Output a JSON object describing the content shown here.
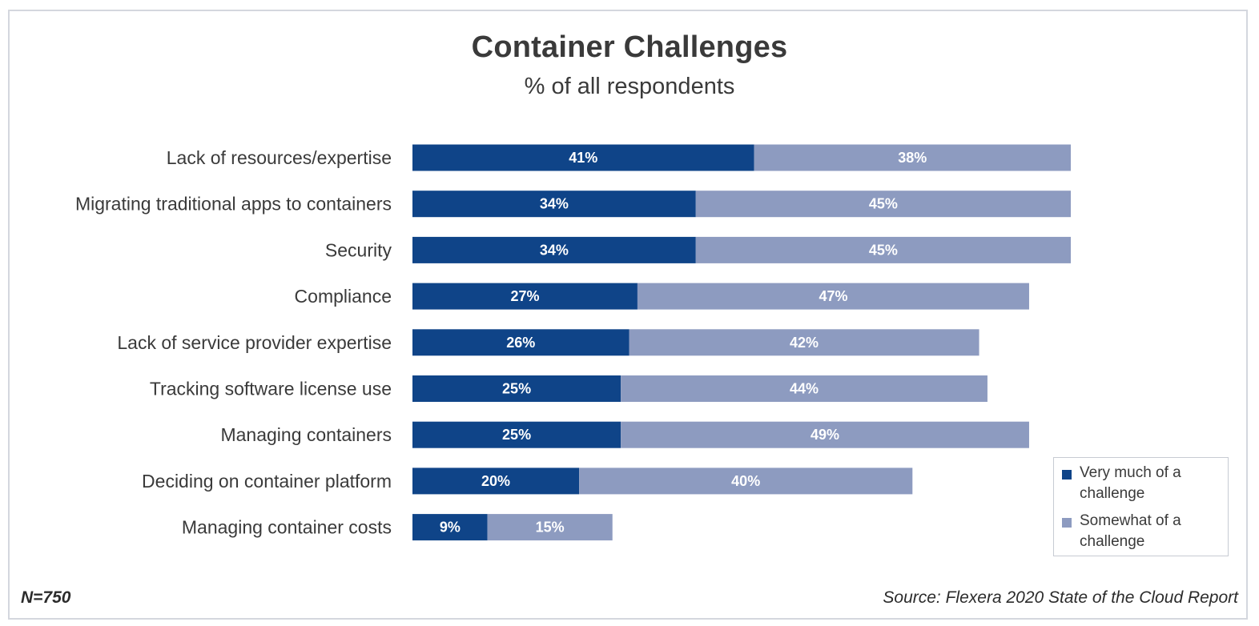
{
  "chart_data": {
    "type": "bar",
    "orientation": "horizontal",
    "stacked": true,
    "title": "Container Challenges",
    "subtitle": "% of all respondents",
    "categories": [
      "Lack of resources/expertise",
      "Migrating traditional apps to containers",
      "Security",
      "Compliance",
      "Lack of service provider expertise",
      "Tracking software license use",
      "Managing containers",
      "Deciding on container platform",
      "Managing container costs"
    ],
    "series": [
      {
        "name": "Very much of a challenge",
        "color": "#0f4488",
        "values": [
          41,
          34,
          34,
          27,
          26,
          25,
          25,
          20,
          9
        ],
        "labels": [
          "41%",
          "34%",
          "34%",
          "27%",
          "26%",
          "25%",
          "25%",
          "20%",
          "9%"
        ]
      },
      {
        "name": "Somewhat of a challenge",
        "color": "#8d9bc0",
        "values": [
          38,
          45,
          45,
          47,
          42,
          44,
          49,
          40,
          15
        ],
        "labels": [
          "38%",
          "45%",
          "45%",
          "47%",
          "42%",
          "44%",
          "49%",
          "40%",
          "15%"
        ]
      }
    ],
    "xlim": [
      0,
      80
    ],
    "grid": false,
    "legend_position": "bottom-right"
  },
  "legend": {
    "items": [
      {
        "label": "Very much of a challenge",
        "color": "#0f4488"
      },
      {
        "label": "Somewhat of a challenge",
        "color": "#8d9bc0"
      }
    ]
  },
  "footer": {
    "sample_size": "N=750",
    "source": "Source: Flexera 2020 State of the Cloud Report"
  }
}
